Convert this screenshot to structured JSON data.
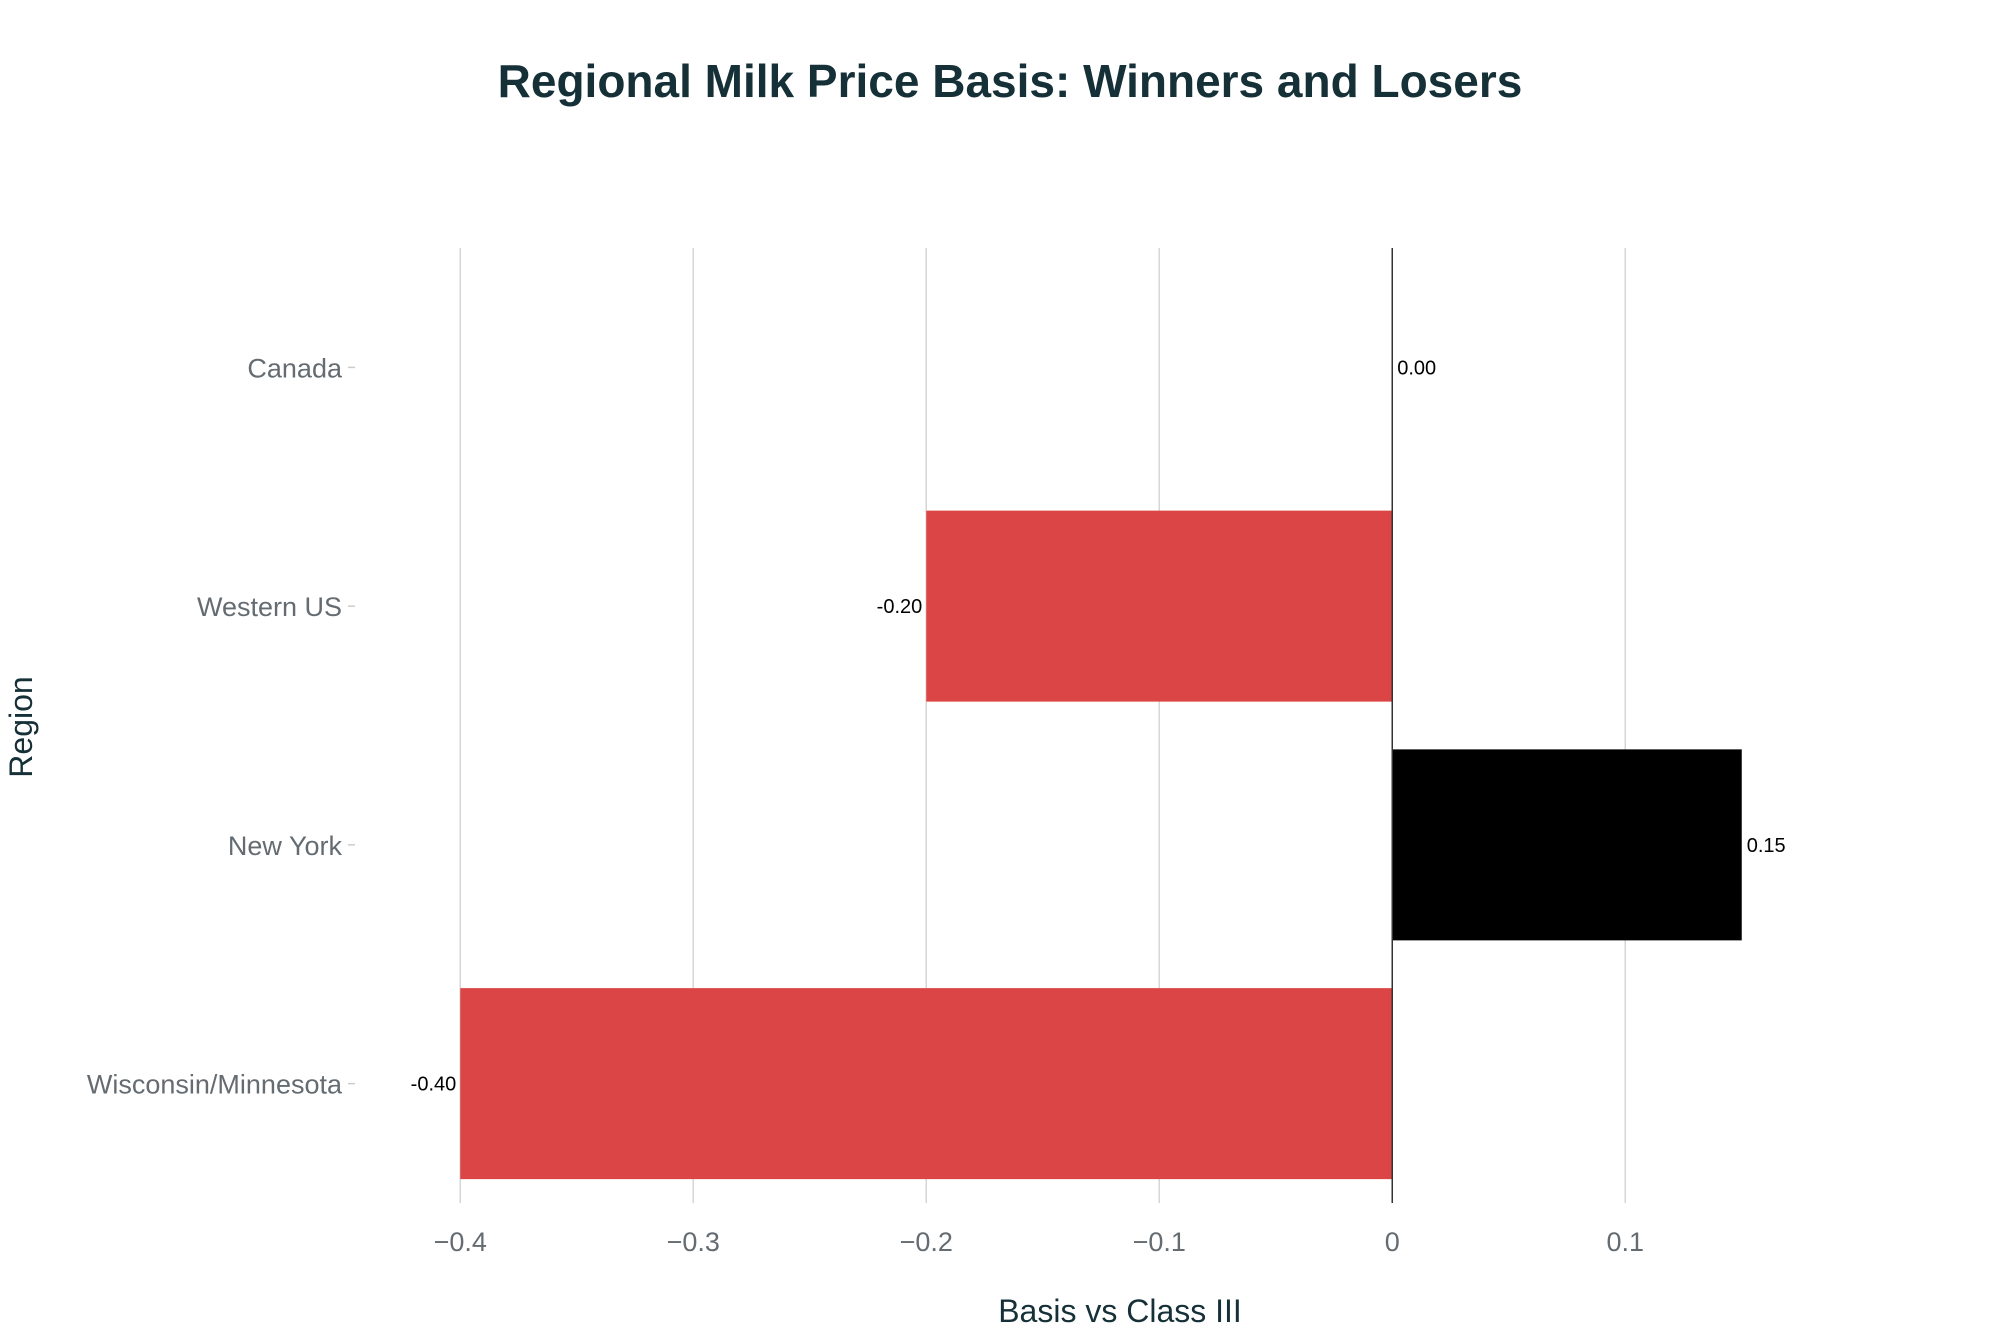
{
  "chart_data": {
    "type": "bar",
    "orientation": "horizontal",
    "title": "Regional Milk Price Basis: Winners and Losers",
    "xlabel": "Basis vs Class III",
    "ylabel": "Region",
    "categories": [
      "Wisconsin/Minnesota",
      "New York",
      "Western US",
      "Canada"
    ],
    "values": [
      -0.4,
      0.15,
      -0.2,
      0.0
    ],
    "data_labels": [
      "-0.40",
      "0.15",
      "-0.20",
      "0.00"
    ],
    "bar_colors": [
      "#db4545",
      "#000000",
      "#db4545",
      "#000000"
    ],
    "xlim": [
      -0.425,
      0.175
    ],
    "xticks": [
      -0.4,
      -0.3,
      -0.2,
      -0.1,
      0,
      0.1
    ],
    "xtick_labels": [
      "−0.4",
      "−0.3",
      "−0.2",
      "−0.1",
      "0",
      "0.1"
    ],
    "grid": true,
    "legend": false
  }
}
